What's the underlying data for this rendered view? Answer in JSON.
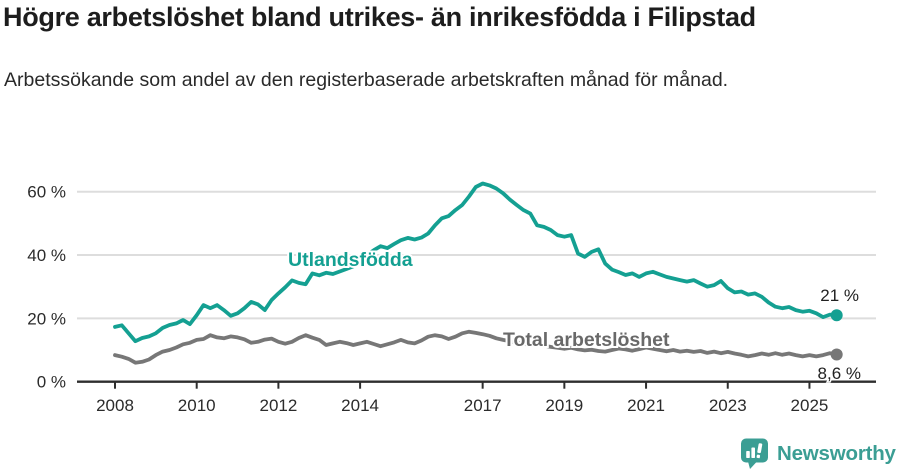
{
  "header": {
    "title": "Högre arbetslöshet bland utrikes- än inrikesfödda i Filipstad",
    "subtitle": "Arbetssökande som andel av den registerbaserade arbetskraften månad för månad."
  },
  "chart_data": {
    "type": "line",
    "title": "Högre arbetslöshet bland utrikes- än inrikesfödda i Filipstad",
    "subtitle": "Arbetssökande som andel av den registerbaserade arbetskraften månad för månad.",
    "grid": "horizontal-only",
    "x_start_year": 2008,
    "x_step_months": 2,
    "x_ticks": [
      {
        "year": 2008,
        "label": "2008"
      },
      {
        "year": 2010,
        "label": "2010"
      },
      {
        "year": 2012,
        "label": "2012"
      },
      {
        "year": 2014,
        "label": "2014"
      },
      {
        "year": 2017,
        "label": "2017"
      },
      {
        "year": 2019,
        "label": "2019"
      },
      {
        "year": 2021,
        "label": "2021"
      },
      {
        "year": 2023,
        "label": "2023"
      },
      {
        "year": 2025,
        "label": "2025"
      }
    ],
    "y_ticks": [
      {
        "value": 0,
        "label": "0 %"
      },
      {
        "value": 20,
        "label": "20 %"
      },
      {
        "value": 40,
        "label": "40 %"
      },
      {
        "value": 60,
        "label": "60 %"
      }
    ],
    "ylim": [
      0,
      65
    ],
    "colors": {
      "grid": "#dddddd",
      "axis": "#2e2e2e",
      "tick_text": "#2b2b2b",
      "annotation_text": "#222222"
    },
    "series": [
      {
        "id": "utlandsfodda",
        "label": "Utlandsfödda",
        "color": "#14A092",
        "label_color": "#14A092",
        "end_value_label": "21 %",
        "values": [
          17.3,
          17.8,
          15.3,
          12.8,
          13.8,
          14.3,
          15.3,
          17.0,
          17.9,
          18.4,
          19.5,
          18.2,
          21.0,
          24.2,
          23.2,
          24.2,
          22.6,
          20.8,
          21.6,
          23.2,
          25.2,
          24.4,
          22.6,
          25.8,
          27.9,
          29.8,
          32.0,
          31.2,
          30.8,
          34.2,
          33.6,
          34.4,
          34.0,
          34.8,
          35.6,
          36.4,
          38.5,
          40.0,
          41.5,
          42.8,
          42.2,
          43.5,
          44.7,
          45.4,
          44.9,
          45.5,
          46.8,
          49.4,
          51.6,
          52.3,
          54.2,
          55.8,
          58.5,
          61.5,
          62.6,
          62.0,
          61.0,
          59.5,
          57.5,
          55.8,
          54.2,
          53.1,
          49.4,
          48.9,
          47.9,
          46.3,
          45.8,
          46.3,
          40.5,
          39.4,
          41.0,
          41.8,
          37.3,
          35.4,
          34.6,
          33.7,
          34.2,
          33.1,
          34.2,
          34.7,
          33.9,
          33.1,
          32.6,
          32.1,
          31.6,
          32.1,
          31.0,
          30.0,
          30.5,
          31.8,
          29.5,
          28.2,
          28.5,
          27.5,
          27.9,
          26.8,
          25.0,
          23.7,
          23.2,
          23.6,
          22.6,
          22.1,
          22.4,
          21.6,
          20.4,
          21.2,
          21.0
        ]
      },
      {
        "id": "total",
        "label": "Total arbetslöshet",
        "color": "#777777",
        "label_color": "#696969",
        "end_value_label": "8,6 %",
        "values": [
          8.4,
          7.9,
          7.2,
          6.0,
          6.3,
          7.0,
          8.4,
          9.5,
          10.0,
          10.8,
          11.8,
          12.3,
          13.2,
          13.5,
          14.7,
          14.0,
          13.7,
          14.3,
          14.0,
          13.4,
          12.3,
          12.6,
          13.3,
          13.6,
          12.6,
          12.0,
          12.6,
          13.8,
          14.7,
          13.9,
          13.2,
          11.6,
          12.1,
          12.6,
          12.2,
          11.6,
          12.1,
          12.6,
          11.9,
          11.2,
          11.8,
          12.4,
          13.2,
          12.4,
          12.1,
          13.0,
          14.2,
          14.7,
          14.3,
          13.5,
          14.2,
          15.3,
          15.8,
          15.4,
          15.0,
          14.5,
          13.7,
          13.2,
          12.8,
          12.3,
          12.0,
          11.6,
          11.9,
          11.4,
          11.0,
          10.7,
          10.4,
          10.7,
          10.2,
          9.9,
          10.1,
          9.7,
          9.5,
          10.0,
          10.5,
          10.2,
          9.8,
          10.3,
          10.8,
          10.4,
          10.0,
          9.6,
          10.0,
          9.5,
          9.8,
          9.4,
          9.7,
          9.1,
          9.5,
          9.0,
          9.4,
          8.9,
          8.5,
          8.0,
          8.4,
          8.9,
          8.5,
          9.0,
          8.5,
          8.9,
          8.4,
          8.0,
          8.4,
          8.0,
          8.4,
          9.0,
          8.6
        ]
      }
    ]
  },
  "footer": {
    "brand": "Newsworthy",
    "brand_color": "#3B9E94"
  }
}
